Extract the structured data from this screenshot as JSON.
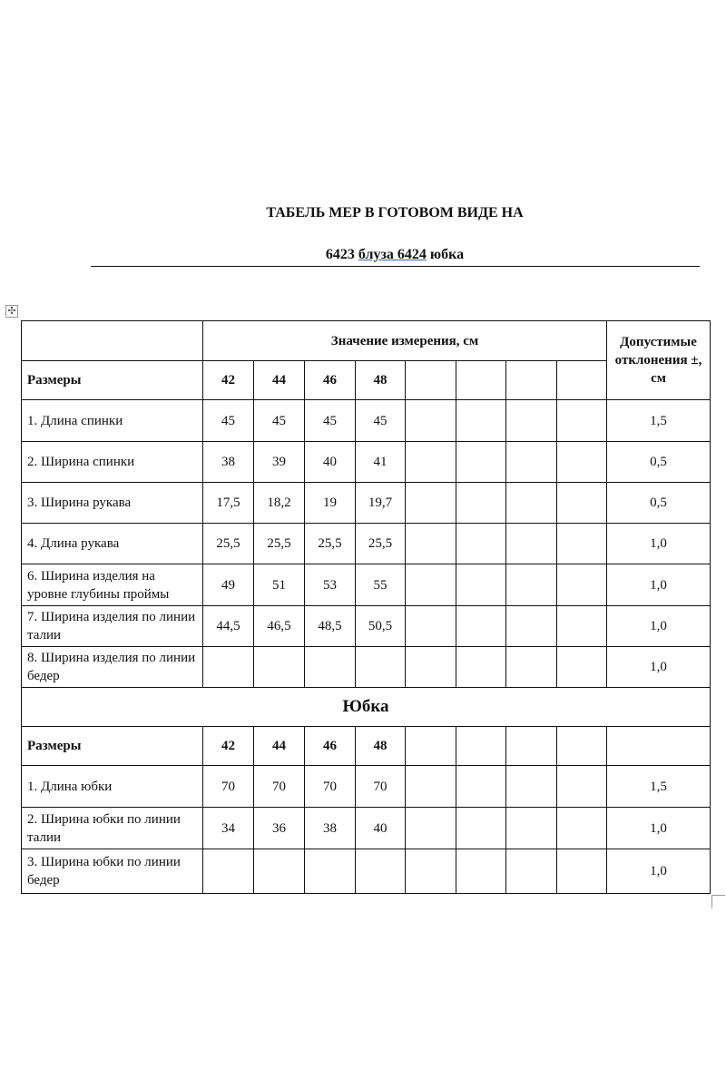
{
  "title": {
    "line1": "ТАБЕЛЬ МЕР В ГОТОВОМ ВИДЕ НА",
    "line2_a": "6423 ",
    "line2_b": "блуза  6424",
    "line2_c": " юбка"
  },
  "table": {
    "measure_header": "Значение измерения, см",
    "tolerance_header": "Допустимые отклонения ±, см",
    "sizes_label": "Размеры",
    "sizes": [
      "42",
      "44",
      "46",
      "48",
      "",
      "",
      "",
      ""
    ],
    "blouse_rows": [
      {
        "label": "1. Длина спинки",
        "values": [
          "45",
          "45",
          "45",
          "45",
          "",
          "",
          "",
          ""
        ],
        "tolerance": "1,5"
      },
      {
        "label": "2. Ширина спинки",
        "values": [
          "38",
          "39",
          "40",
          "41",
          "",
          "",
          "",
          ""
        ],
        "tolerance": "0,5"
      },
      {
        "label": "3. Ширина рукава",
        "values": [
          "17,5",
          "18,2",
          "19",
          "19,7",
          "",
          "",
          "",
          ""
        ],
        "tolerance": "0,5"
      },
      {
        "label": "4. Длина рукава",
        "values": [
          "25,5",
          "25,5",
          "25,5",
          "25,5",
          "",
          "",
          "",
          ""
        ],
        "tolerance": "1,0"
      },
      {
        "label": "6. Ширина изделия на уровне глубины проймы",
        "values": [
          "49",
          "51",
          "53",
          "55",
          "",
          "",
          "",
          ""
        ],
        "tolerance": "1,0"
      },
      {
        "label": "7. Ширина изделия по линии талии",
        "values": [
          "44,5",
          "46,5",
          "48,5",
          "50,5",
          "",
          "",
          "",
          ""
        ],
        "tolerance": "1,0"
      },
      {
        "label": "8. Ширина изделия по линии бедер",
        "values": [
          "",
          "",
          "",
          "",
          "",
          "",
          "",
          ""
        ],
        "tolerance": "1,0"
      }
    ],
    "skirt_section": "Юбка",
    "skirt_sizes_label": "Размеры",
    "skirt_sizes": [
      "42",
      "44",
      "46",
      "48",
      "",
      "",
      "",
      ""
    ],
    "skirt_rows": [
      {
        "label": "1. Длина юбки",
        "values": [
          "70",
          "70",
          "70",
          "70",
          "",
          "",
          "",
          ""
        ],
        "tolerance": "1,5"
      },
      {
        "label": "2. Ширина юбки по линии талии",
        "values": [
          "34",
          "36",
          "38",
          "40",
          "",
          "",
          "",
          ""
        ],
        "tolerance": "1,0"
      },
      {
        "label": "3. Ширина юбки по линии бедер",
        "values": [
          "",
          "",
          "",
          "",
          "",
          "",
          "",
          ""
        ],
        "tolerance": "1,0"
      }
    ]
  },
  "icons": {
    "table_move": "move-handle-icon"
  }
}
